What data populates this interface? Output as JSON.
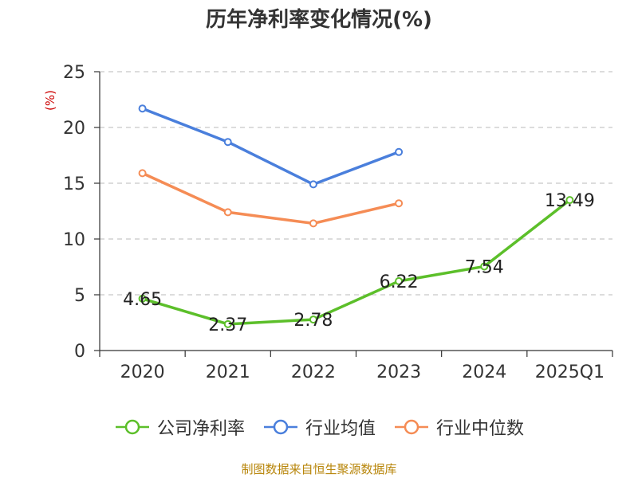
{
  "title": "历年净利率变化情况(%)",
  "source_note": "制图数据来自恒生聚源数据库",
  "colors": {
    "company": "#5cbf2a",
    "industry_avg": "#4a7fdc",
    "industry_median": "#f58c55",
    "unit_label": "#cc0000",
    "source": "#b8860b",
    "grid": "#c8c8c8",
    "axis": "#333333"
  },
  "chart_data": {
    "type": "line",
    "title": "历年净利率变化情况(%)",
    "ylabel": "(%)",
    "xlabel": "",
    "categories": [
      "2020",
      "2021",
      "2022",
      "2023",
      "2024",
      "2025Q1"
    ],
    "ylim": [
      0,
      25
    ],
    "yticks": [
      0,
      5,
      10,
      15,
      20,
      25
    ],
    "grid": true,
    "legend_position": "bottom",
    "series": [
      {
        "name": "公司净利率",
        "color_key": "company",
        "labeled": true,
        "values": [
          4.65,
          2.37,
          2.78,
          6.22,
          7.54,
          13.49
        ],
        "labels": [
          "4.65",
          "2.37",
          "2.78",
          "6.22",
          "7.54",
          "13.49"
        ]
      },
      {
        "name": "行业均值",
        "color_key": "industry_avg",
        "labeled": false,
        "values": [
          21.7,
          18.7,
          14.9,
          17.8,
          null,
          null
        ]
      },
      {
        "name": "行业中位数",
        "color_key": "industry_median",
        "labeled": false,
        "values": [
          15.9,
          12.4,
          11.4,
          13.2,
          null,
          null
        ]
      }
    ]
  }
}
